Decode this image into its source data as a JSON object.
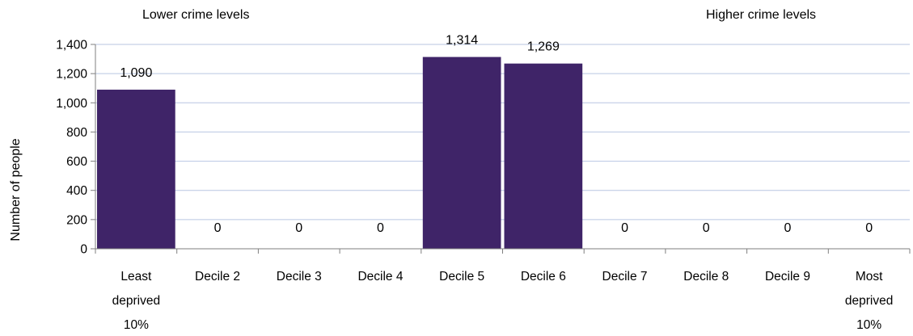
{
  "chart_data": {
    "type": "bar",
    "title": "",
    "xlabel": "",
    "ylabel": "Number of people",
    "ylim": [
      0,
      1400
    ],
    "yticks": [
      0,
      200,
      400,
      600,
      800,
      1000,
      1200,
      1400
    ],
    "ytick_labels": [
      "0",
      "200",
      "400",
      "600",
      "800",
      "1,000",
      "1,200",
      "1,400"
    ],
    "grid": true,
    "categories": [
      [
        "Least",
        "deprived",
        "10%"
      ],
      [
        "Decile 2"
      ],
      [
        "Decile 3"
      ],
      [
        "Decile 4"
      ],
      [
        "Decile 5"
      ],
      [
        "Decile 6"
      ],
      [
        "Decile 7"
      ],
      [
        "Decile 8"
      ],
      [
        "Decile 9"
      ],
      [
        "Most",
        "deprived",
        "10%"
      ]
    ],
    "values": [
      1090,
      0,
      0,
      0,
      1314,
      1269,
      0,
      0,
      0,
      0
    ],
    "value_labels": [
      "1,090",
      "0",
      "0",
      "0",
      "1,314",
      "1,269",
      "0",
      "0",
      "0",
      "0"
    ],
    "annotations": {
      "left": "Lower crime levels",
      "right": "Higher crime levels"
    },
    "colors": {
      "bar": "#3f2468",
      "grid": "#b9c6e2",
      "axis": "#7f7f7f"
    }
  }
}
